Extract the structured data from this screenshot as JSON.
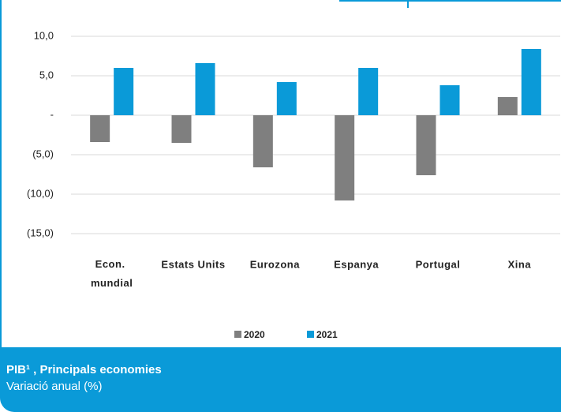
{
  "chart_data": {
    "type": "bar",
    "title": "PIB¹ , Principals economies",
    "subtitle": "Variació anual (%)",
    "categories": [
      "Econ. mundial",
      "Estats Units",
      "Eurozona",
      "Espanya",
      "Portugal",
      "Xina"
    ],
    "series": [
      {
        "name": "2020",
        "color": "#7f7f7f",
        "values": [
          -3.4,
          -3.5,
          -6.6,
          -10.8,
          -7.6,
          2.3
        ]
      },
      {
        "name": "2021",
        "color": "#0a9ad8",
        "values": [
          6.0,
          6.6,
          4.2,
          6.0,
          3.8,
          8.4
        ]
      }
    ],
    "ylim": [
      -15,
      10
    ],
    "yticks": [
      {
        "value": -15,
        "label": "(15,0)"
      },
      {
        "value": -10,
        "label": "(10,0)"
      },
      {
        "value": -5,
        "label": "(5,0)"
      },
      {
        "value": 0,
        "label": "-"
      },
      {
        "value": 5,
        "label": "5,0"
      },
      {
        "value": 10,
        "label": "10,0"
      }
    ],
    "grid": true,
    "legend": "bottom"
  }
}
